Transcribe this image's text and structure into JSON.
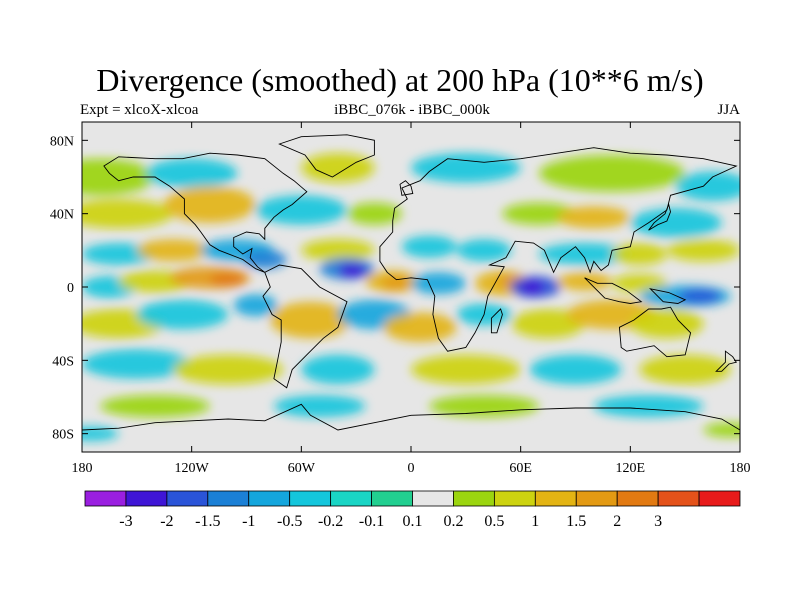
{
  "chart_data": {
    "type": "heatmap",
    "title": "Divergence (smoothed) at 200 hPa (10**6 m/s)",
    "left_label": "Expt = xlcoX-xlcoa",
    "center_label": "iBBC_076k - iBBC_000k",
    "right_label": "JJA",
    "x_ticks": [
      "180",
      "120W",
      "60W",
      "0",
      "60E",
      "120E",
      "180"
    ],
    "y_ticks": [
      "80N",
      "40N",
      "0",
      "40S",
      "80S"
    ],
    "xlim": [
      -180,
      180
    ],
    "ylim": [
      -90,
      90
    ],
    "colorbar": {
      "labels": [
        "-3",
        "-2",
        "-1.5",
        "-1",
        "-0.5",
        "-0.2",
        "-0.1",
        "0.1",
        "0.2",
        "0.5",
        "1",
        "1.5",
        "2",
        "3"
      ],
      "colors": [
        "#9a1fe0",
        "#3f15d6",
        "#2a54d8",
        "#1b80d6",
        "#14a6dd",
        "#14c6dc",
        "#1ad5c5",
        "#22cf90",
        "#e6e6e6",
        "#9bd50f",
        "#cdd310",
        "#e3b413",
        "#e39a13",
        "#e27a12",
        "#e4521a",
        "#e81b1b"
      ]
    },
    "features": [
      {
        "name": "strong-convergence-atlantic",
        "lon": -35,
        "lat": 10,
        "value": -3
      },
      {
        "name": "strong-convergence-indian-ocean",
        "lon": 65,
        "lat": 0,
        "value": -3
      },
      {
        "name": "convergence-equatorial-pacific-west",
        "lon": 150,
        "lat": -5,
        "value": -2
      },
      {
        "name": "convergence-central-america",
        "lon": -85,
        "lat": 15,
        "value": -1.5
      },
      {
        "name": "divergence-east-pacific",
        "lon": -110,
        "lat": 5,
        "value": 2
      },
      {
        "name": "divergence-west-africa",
        "lon": -10,
        "lat": 3,
        "value": 1.5
      },
      {
        "name": "divergence-arabian-sea",
        "lon": 55,
        "lat": 5,
        "value": 1.5
      },
      {
        "name": "divergence-south-america",
        "lon": -55,
        "lat": -20,
        "value": 1
      },
      {
        "name": "divergence-south-atlantic",
        "lon": 0,
        "lat": -25,
        "value": 1
      }
    ]
  }
}
